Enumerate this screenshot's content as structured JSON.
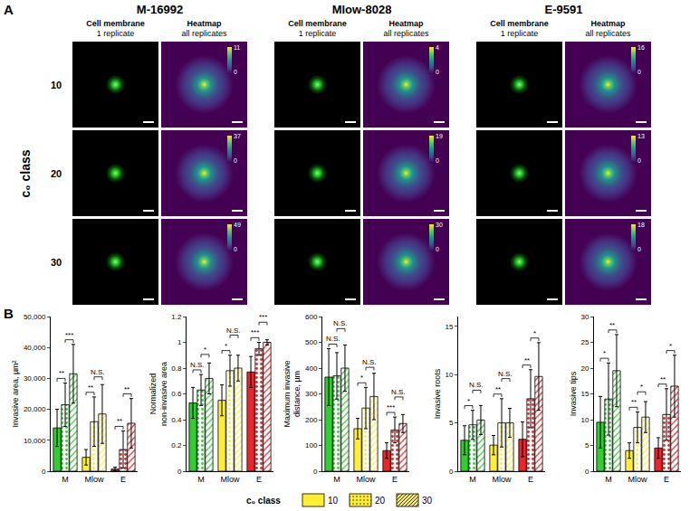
{
  "panel_A": {
    "letter": "A",
    "row_title": "c₀ class",
    "rows": [
      "10",
      "20",
      "30"
    ],
    "subheads": [
      [
        "Cell membrane",
        "1 replicate"
      ],
      [
        "Heatmap",
        "all replicates"
      ]
    ],
    "colorbar_min": 0,
    "cell_lines": [
      {
        "name": "M-16992",
        "colorbar_max": [
          11,
          37,
          49
        ]
      },
      {
        "name": "Mlow-8028",
        "colorbar_max": [
          4,
          19,
          30
        ]
      },
      {
        "name": "E-9591",
        "colorbar_max": [
          16,
          13,
          18
        ]
      }
    ]
  },
  "panel_B": {
    "letter": "B",
    "legend_title": "c₀ class"
  },
  "chart_data": [
    {
      "type": "bar",
      "y_label": "Invasive area, µm²",
      "categories": [
        "M",
        "Mlow",
        "E"
      ],
      "colors": [
        "#33cc33",
        "#ffee33",
        "#e8262b"
      ],
      "series": [
        {
          "name": "10",
          "marker": "solid",
          "values": [
            14000,
            4500,
            700
          ],
          "errors": [
            6000,
            2500,
            600
          ]
        },
        {
          "name": "20",
          "marker": "dotted",
          "values": [
            21500,
            16000,
            7000
          ],
          "errors": [
            7000,
            8000,
            6000
          ]
        },
        {
          "name": "30",
          "marker": "hatched",
          "values": [
            31500,
            18500,
            15500
          ],
          "errors": [
            9500,
            9500,
            8000
          ]
        }
      ],
      "significance": [
        [
          "**",
          "***"
        ],
        [
          "**",
          "N.S."
        ],
        [
          "**",
          "**"
        ]
      ],
      "ylim": [
        0,
        50000
      ],
      "yticks": [
        0,
        {
          "value": 10000,
          "label": "10,000"
        },
        {
          "value": 20000,
          "label": "20,000"
        },
        {
          "value": 30000,
          "label": "30,000"
        },
        {
          "value": 40000,
          "label": "40,000"
        },
        {
          "value": 50000,
          "label": "50,000"
        }
      ],
      "legend": "bottom"
    },
    {
      "type": "bar",
      "y_label": "Normalized non-invasive area",
      "categories": [
        "M",
        "Mlow",
        "E"
      ],
      "colors": [
        "#33cc33",
        "#ffee33",
        "#e8262b"
      ],
      "series": [
        {
          "name": "10",
          "marker": "solid",
          "values": [
            0.53,
            0.55,
            0.77
          ],
          "errors": [
            0.12,
            0.12,
            0.12
          ]
        },
        {
          "name": "20",
          "marker": "dotted",
          "values": [
            0.63,
            0.78,
            0.95
          ],
          "errors": [
            0.12,
            0.12,
            0.05
          ]
        },
        {
          "name": "30",
          "marker": "hatched",
          "values": [
            0.72,
            0.8,
            1.0
          ],
          "errors": [
            0.12,
            0.1,
            0.02
          ]
        }
      ],
      "significance": [
        [
          "N.S.",
          "*"
        ],
        [
          "*",
          "N.S."
        ],
        [
          "***",
          "***"
        ]
      ],
      "ylim": [
        0,
        1.2
      ],
      "yticks": [
        0,
        0.2,
        0.4,
        0.6,
        0.8,
        1,
        1.2
      ],
      "legend": "bottom"
    },
    {
      "type": "bar",
      "y_label": "Maximum invasive distance, µm",
      "categories": [
        "M",
        "Mlow",
        "E"
      ],
      "colors": [
        "#33cc33",
        "#ffee33",
        "#e8262b"
      ],
      "series": [
        {
          "name": "10",
          "marker": "solid",
          "values": [
            365,
            165,
            80
          ],
          "errors": [
            110,
            40,
            30
          ]
        },
        {
          "name": "20",
          "marker": "dotted",
          "values": [
            370,
            245,
            160
          ],
          "errors": [
            90,
            80,
            50
          ]
        },
        {
          "name": "30",
          "marker": "hatched",
          "values": [
            400,
            290,
            185
          ],
          "errors": [
            90,
            90,
            35
          ]
        }
      ],
      "significance": [
        [
          "N.S.",
          "N.S."
        ],
        [
          "*",
          "N.S."
        ],
        [
          "***",
          "N.S."
        ]
      ],
      "ylim": [
        0,
        600
      ],
      "yticks": [
        0,
        100,
        200,
        300,
        400,
        500,
        600
      ],
      "legend": "bottom"
    },
    {
      "type": "bar",
      "y_label": "Invasive roots",
      "categories": [
        "M",
        "Mlow",
        "E"
      ],
      "colors": [
        "#33cc33",
        "#ffee33",
        "#e8262b"
      ],
      "series": [
        {
          "name": "10",
          "marker": "solid",
          "values": [
            3.2,
            2.7,
            3.3
          ],
          "errors": [
            1.5,
            1.0,
            1.8
          ]
        },
        {
          "name": "20",
          "marker": "dotted",
          "values": [
            4.8,
            5.0,
            7.5
          ],
          "errors": [
            1.5,
            2.5,
            3.0
          ]
        },
        {
          "name": "30",
          "marker": "hatched",
          "values": [
            5.3,
            5.0,
            9.8
          ],
          "errors": [
            1.5,
            1.5,
            3.5
          ]
        }
      ],
      "significance": [
        [
          "*",
          "N.S."
        ],
        [
          "**",
          "N.S."
        ],
        [
          "**",
          "*"
        ]
      ],
      "ylim": [
        0,
        16
      ],
      "yticks": [
        0,
        5,
        10,
        15
      ],
      "legend": "bottom"
    },
    {
      "type": "bar",
      "y_label": "Invasive tips",
      "categories": [
        "M",
        "Mlow",
        "E"
      ],
      "colors": [
        "#33cc33",
        "#ffee33",
        "#e8262b"
      ],
      "series": [
        {
          "name": "10",
          "marker": "solid",
          "values": [
            9.5,
            4.0,
            4.5
          ],
          "errors": [
            5.0,
            1.5,
            2.0
          ]
        },
        {
          "name": "20",
          "marker": "dotted",
          "values": [
            14.0,
            8.5,
            11.0
          ],
          "errors": [
            7.0,
            3.0,
            5.0
          ]
        },
        {
          "name": "30",
          "marker": "hatched",
          "values": [
            19.5,
            10.5,
            16.5
          ],
          "errors": [
            7.0,
            3.0,
            6.0
          ]
        }
      ],
      "significance": [
        [
          "*",
          "**"
        ],
        [
          "**",
          "*"
        ],
        [
          "**",
          "*"
        ]
      ],
      "ylim": [
        0,
        30
      ],
      "yticks": [
        0,
        5,
        10,
        15,
        20,
        25,
        30
      ],
      "legend": "bottom"
    }
  ]
}
